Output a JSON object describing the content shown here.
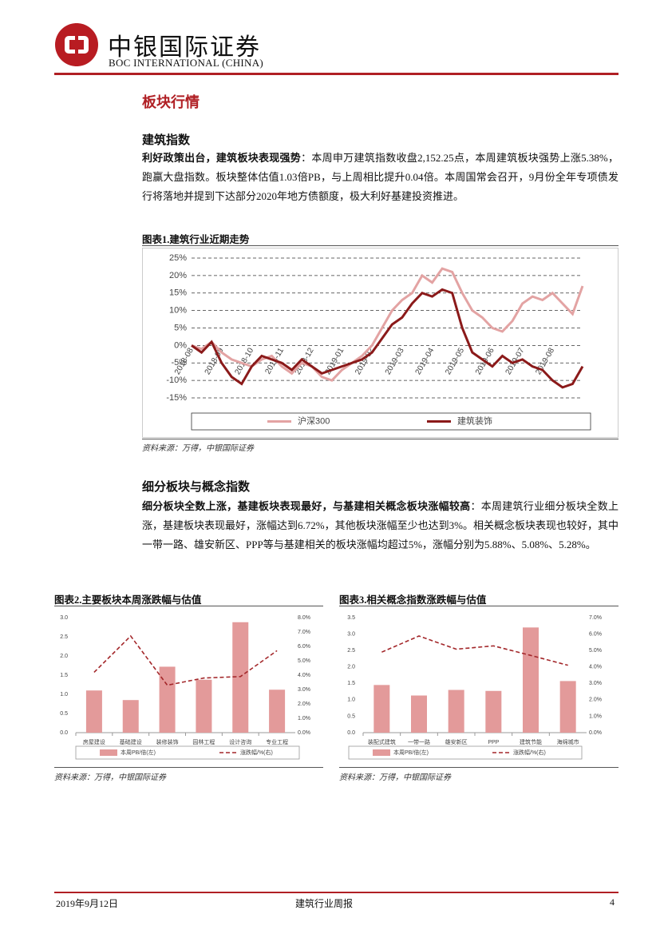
{
  "header": {
    "company_cn": "中银国际证券",
    "company_en": "BOC INTERNATIONAL (CHINA)"
  },
  "section_title": "板块行情",
  "subsection1": "建筑指数",
  "paragraph1": {
    "lead": "利好政策出台，建筑板块表现强势",
    "body": "：本周申万建筑指数收盘2,152.25点，本周建筑板块强势上涨5.38%，跑赢大盘指数。板块整体估值1.03倍PB，与上周相比提升0.04倍。本周国常会召开，9月份全年专项债发行将落地并提到下达部分2020年地方债额度，极大利好基建投资推进。"
  },
  "subsection2": "细分板块与概念指数",
  "paragraph2": {
    "lead": "细分板块全数上涨，基建板块表现最好，与基建相关概念板块涨幅较高",
    "body": "：本周建筑行业细分板块全数上涨，基建板块表现最好，涨幅达到6.72%，其他板块涨幅至少也达到3%。相关概念板块表现也较好，其中一带一路、雄安新区、PPP等与基建相关的板块涨幅均超过5%，涨幅分别为5.88%、5.08%、5.28%。"
  },
  "chart_data": [
    {
      "type": "line",
      "title": "图表1.建筑行业近期走势",
      "source": "资料来源：万得，中银国际证券",
      "categories": [
        "2018-08",
        null,
        null,
        "2018-09",
        null,
        null,
        "2018-10",
        null,
        null,
        "2018-11",
        null,
        null,
        "2018-12",
        null,
        null,
        "2019-01",
        null,
        null,
        "2019-02",
        null,
        null,
        "2019-03",
        null,
        null,
        "2019-04",
        null,
        null,
        "2019-05",
        null,
        null,
        "2019-06",
        null,
        null,
        "2019-07",
        null,
        null,
        "2019-08",
        null,
        null,
        null
      ],
      "series": [
        {
          "name": "沪深300",
          "color": "#e3a3a3",
          "values": [
            0,
            -1,
            1,
            -2,
            -4,
            -5,
            -6,
            -4,
            -3,
            -6,
            -8,
            -5,
            -6,
            -9,
            -10,
            -7,
            -5,
            -3,
            0,
            5,
            10,
            13,
            15,
            20,
            18,
            22,
            21,
            15,
            10,
            8,
            5,
            4,
            7,
            12,
            14,
            13,
            15,
            12,
            9,
            17
          ]
        },
        {
          "name": "建筑装饰",
          "color": "#8b1a1a",
          "values": [
            0,
            -2,
            1,
            -5,
            -9,
            -11,
            -6,
            -3,
            -4,
            -5,
            -7,
            -4,
            -6,
            -8,
            -7,
            -6,
            -5,
            -4,
            -2,
            2,
            6,
            8,
            12,
            15,
            14,
            16,
            15,
            5,
            -2,
            -4,
            -6,
            -3,
            -5,
            -4,
            -6,
            -7,
            -10,
            -12,
            -11,
            -6
          ]
        }
      ],
      "ylim": [
        -15,
        25
      ],
      "yticks": [
        {
          "value": -15,
          "label": "-15%"
        },
        {
          "value": -10,
          "label": "-10%"
        },
        {
          "value": -5,
          "label": "-5%"
        },
        {
          "value": 0,
          "label": "0%"
        },
        {
          "value": 5,
          "label": "5%"
        },
        {
          "value": 10,
          "label": "10%"
        },
        {
          "value": 15,
          "label": "15%"
        },
        {
          "value": 20,
          "label": "20%"
        },
        {
          "value": 25,
          "label": "25%"
        }
      ],
      "grid": true,
      "legend": "bottom"
    },
    {
      "type": "bar",
      "title": "图表2.主要板块本周涨跌幅与估值",
      "source": "资料来源：万得，中银国际证券",
      "categories": [
        "房屋建设",
        "基础建设",
        "装修装饰",
        "园林工程",
        "设计咨询",
        "专业工程"
      ],
      "series": [
        {
          "name": "本周PB/倍(左)",
          "type": "bar",
          "color": "#e39a9a",
          "values": [
            1.1,
            0.85,
            1.72,
            1.38,
            2.88,
            1.12
          ]
        },
        {
          "name": "涨跌幅/%(右)",
          "type": "line",
          "axis": "y2",
          "color": "#a3272a",
          "values": [
            4.2,
            6.72,
            3.3,
            3.8,
            3.9,
            5.7
          ]
        }
      ],
      "ylim": [
        0,
        3
      ],
      "yticks": [
        {
          "value": 0,
          "label": "0.0"
        },
        0.5,
        {
          "value": 1,
          "label": "1.0"
        },
        1.5,
        {
          "value": 2,
          "label": "2.0"
        },
        2.5,
        {
          "value": 3,
          "label": "3.0"
        }
      ],
      "y2lim": [
        0,
        8
      ],
      "y2ticks": [
        {
          "value": 0,
          "label": "0.0%"
        },
        {
          "value": 1,
          "label": "1.0%"
        },
        {
          "value": 2,
          "label": "2.0%"
        },
        {
          "value": 3,
          "label": "3.0%"
        },
        {
          "value": 4,
          "label": "4.0%"
        },
        {
          "value": 5,
          "label": "5.0%"
        },
        {
          "value": 6,
          "label": "6.0%"
        },
        {
          "value": 7,
          "label": "7.0%"
        },
        {
          "value": 8,
          "label": "8.0%"
        }
      ],
      "grid": false,
      "legend": "bottom"
    },
    {
      "type": "bar",
      "title": "图表3.相关概念指数涨跌幅与估值",
      "source": "资料来源：万得，中银国际证券",
      "categories": [
        "装配式建筑",
        "一带一路",
        "雄安新区",
        "PPP",
        "建筑节能",
        "海绵城市"
      ],
      "series": [
        {
          "name": "本周PB/倍(左)",
          "type": "bar",
          "color": "#e39a9a",
          "values": [
            1.45,
            1.13,
            1.3,
            1.27,
            3.2,
            1.57
          ]
        },
        {
          "name": "涨跌幅/%(右)",
          "type": "line",
          "axis": "y2",
          "color": "#a3272a",
          "values": [
            4.9,
            5.88,
            5.08,
            5.28,
            4.7,
            4.1
          ]
        }
      ],
      "ylim": [
        0,
        3.5
      ],
      "yticks": [
        {
          "value": 0,
          "label": "0.0"
        },
        0.5,
        {
          "value": 1,
          "label": "1.0"
        },
        1.5,
        {
          "value": 2,
          "label": "2.0"
        },
        2.5,
        {
          "value": 3,
          "label": "3.0"
        },
        3.5
      ],
      "y2lim": [
        0,
        7
      ],
      "y2ticks": [
        {
          "value": 0,
          "label": "0.0%"
        },
        {
          "value": 1,
          "label": "1.0%"
        },
        {
          "value": 2,
          "label": "2.0%"
        },
        {
          "value": 3,
          "label": "3.0%"
        },
        {
          "value": 4,
          "label": "4.0%"
        },
        {
          "value": 5,
          "label": "5.0%"
        },
        {
          "value": 6,
          "label": "6.0%"
        },
        {
          "value": 7,
          "label": "7.0%"
        }
      ],
      "grid": false,
      "legend": "bottom"
    }
  ],
  "footer": {
    "date": "2019年9月12日",
    "report": "建筑行业周报",
    "page": "4"
  }
}
